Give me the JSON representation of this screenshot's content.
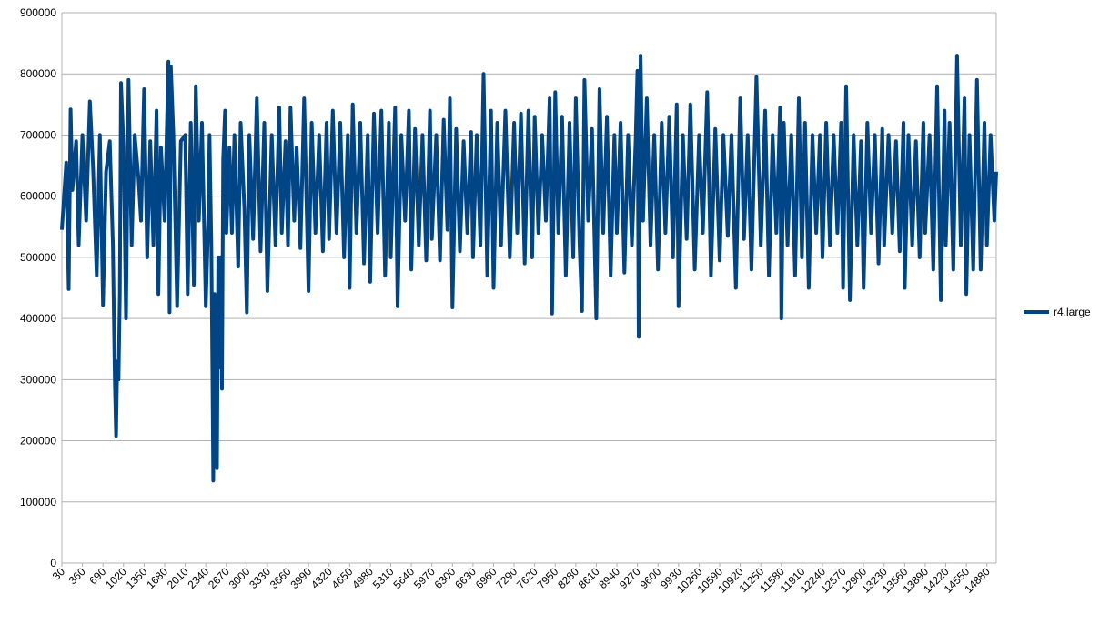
{
  "chart_data": {
    "type": "line",
    "title": "",
    "xlabel": "",
    "ylabel": "",
    "ylim": [
      0,
      900000
    ],
    "y_ticks": [
      0,
      100000,
      200000,
      300000,
      400000,
      500000,
      600000,
      700000,
      800000,
      900000
    ],
    "x_tick_labels": [
      "30",
      "360",
      "690",
      "1020",
      "1350",
      "1680",
      "2010",
      "2340",
      "2670",
      "3000",
      "3330",
      "3660",
      "3990",
      "4320",
      "4650",
      "4980",
      "5310",
      "5640",
      "5970",
      "6300",
      "6630",
      "6960",
      "7290",
      "7620",
      "7950",
      "8280",
      "8610",
      "8940",
      "9270",
      "9600",
      "9930",
      "10260",
      "10590",
      "10920",
      "11250",
      "11580",
      "11910",
      "12240",
      "12570",
      "12900",
      "13230",
      "13560",
      "13890",
      "14220",
      "14550",
      "14880"
    ],
    "xlim": [
      30,
      15030
    ],
    "grid": "horizontal",
    "legend_position": "right",
    "series": [
      {
        "name": "r4.large",
        "color": "#004586",
        "points": [
          [
            30,
            545000
          ],
          [
            100,
            655000
          ],
          [
            140,
            448000
          ],
          [
            170,
            742000
          ],
          [
            200,
            610000
          ],
          [
            260,
            690000
          ],
          [
            300,
            520000
          ],
          [
            360,
            700000
          ],
          [
            420,
            560000
          ],
          [
            480,
            755000
          ],
          [
            530,
            650000
          ],
          [
            590,
            470000
          ],
          [
            640,
            700000
          ],
          [
            690,
            422000
          ],
          [
            740,
            640000
          ],
          [
            800,
            690000
          ],
          [
            850,
            520000
          ],
          [
            880,
            300000
          ],
          [
            900,
            208000
          ],
          [
            920,
            330000
          ],
          [
            940,
            300000
          ],
          [
            960,
            440000
          ],
          [
            980,
            785000
          ],
          [
            1020,
            680000
          ],
          [
            1060,
            400000
          ],
          [
            1100,
            790000
          ],
          [
            1150,
            520000
          ],
          [
            1200,
            700000
          ],
          [
            1260,
            630000
          ],
          [
            1300,
            560000
          ],
          [
            1350,
            775000
          ],
          [
            1400,
            500000
          ],
          [
            1450,
            690000
          ],
          [
            1500,
            520000
          ],
          [
            1550,
            740000
          ],
          [
            1580,
            440000
          ],
          [
            1620,
            680000
          ],
          [
            1680,
            560000
          ],
          [
            1740,
            820000
          ],
          [
            1760,
            410000
          ],
          [
            1780,
            812000
          ],
          [
            1820,
            700000
          ],
          [
            1880,
            420000
          ],
          [
            1940,
            690000
          ],
          [
            2010,
            700000
          ],
          [
            2050,
            440000
          ],
          [
            2100,
            720000
          ],
          [
            2150,
            455000
          ],
          [
            2180,
            780000
          ],
          [
            2230,
            560000
          ],
          [
            2280,
            720000
          ],
          [
            2340,
            420000
          ],
          [
            2380,
            560000
          ],
          [
            2400,
            700000
          ],
          [
            2430,
            520000
          ],
          [
            2450,
            270000
          ],
          [
            2460,
            135000
          ],
          [
            2480,
            440000
          ],
          [
            2490,
            160000
          ],
          [
            2510,
            325000
          ],
          [
            2520,
            155000
          ],
          [
            2540,
            500000
          ],
          [
            2560,
            320000
          ],
          [
            2580,
            500000
          ],
          [
            2600,
            285000
          ],
          [
            2620,
            660000
          ],
          [
            2650,
            740000
          ],
          [
            2670,
            540000
          ],
          [
            2720,
            680000
          ],
          [
            2760,
            540000
          ],
          [
            2800,
            700000
          ],
          [
            2860,
            485000
          ],
          [
            2900,
            720000
          ],
          [
            2960,
            580000
          ],
          [
            3000,
            410000
          ],
          [
            3040,
            700000
          ],
          [
            3100,
            530000
          ],
          [
            3160,
            760000
          ],
          [
            3220,
            510000
          ],
          [
            3280,
            720000
          ],
          [
            3330,
            445000
          ],
          [
            3400,
            700000
          ],
          [
            3460,
            520000
          ],
          [
            3520,
            745000
          ],
          [
            3560,
            540000
          ],
          [
            3620,
            690000
          ],
          [
            3660,
            520000
          ],
          [
            3700,
            745000
          ],
          [
            3760,
            560000
          ],
          [
            3800,
            680000
          ],
          [
            3860,
            515000
          ],
          [
            3920,
            760000
          ],
          [
            3990,
            445000
          ],
          [
            4040,
            720000
          ],
          [
            4100,
            540000
          ],
          [
            4160,
            700000
          ],
          [
            4220,
            510000
          ],
          [
            4280,
            720000
          ],
          [
            4320,
            530000
          ],
          [
            4380,
            740000
          ],
          [
            4440,
            540000
          ],
          [
            4500,
            720000
          ],
          [
            4560,
            500000
          ],
          [
            4620,
            700000
          ],
          [
            4650,
            450000
          ],
          [
            4700,
            750000
          ],
          [
            4760,
            540000
          ],
          [
            4820,
            720000
          ],
          [
            4880,
            490000
          ],
          [
            4940,
            700000
          ],
          [
            4980,
            460000
          ],
          [
            5040,
            735000
          ],
          [
            5100,
            540000
          ],
          [
            5160,
            740000
          ],
          [
            5220,
            470000
          ],
          [
            5280,
            720000
          ],
          [
            5310,
            500000
          ],
          [
            5380,
            745000
          ],
          [
            5420,
            420000
          ],
          [
            5480,
            700000
          ],
          [
            5540,
            560000
          ],
          [
            5600,
            740000
          ],
          [
            5640,
            480000
          ],
          [
            5700,
            710000
          ],
          [
            5760,
            520000
          ],
          [
            5820,
            700000
          ],
          [
            5880,
            495000
          ],
          [
            5940,
            740000
          ],
          [
            5970,
            530000
          ],
          [
            6040,
            700000
          ],
          [
            6100,
            495000
          ],
          [
            6160,
            725000
          ],
          [
            6220,
            545000
          ],
          [
            6260,
            760000
          ],
          [
            6300,
            418000
          ],
          [
            6360,
            710000
          ],
          [
            6420,
            510000
          ],
          [
            6480,
            690000
          ],
          [
            6540,
            540000
          ],
          [
            6600,
            705000
          ],
          [
            6630,
            500000
          ],
          [
            6690,
            700000
          ],
          [
            6750,
            520000
          ],
          [
            6800,
            800000
          ],
          [
            6860,
            470000
          ],
          [
            6920,
            740000
          ],
          [
            6960,
            450000
          ],
          [
            7020,
            720000
          ],
          [
            7080,
            520000
          ],
          [
            7150,
            740000
          ],
          [
            7220,
            500000
          ],
          [
            7290,
            720000
          ],
          [
            7340,
            540000
          ],
          [
            7400,
            735000
          ],
          [
            7460,
            490000
          ],
          [
            7520,
            740000
          ],
          [
            7580,
            500000
          ],
          [
            7620,
            730000
          ],
          [
            7680,
            540000
          ],
          [
            7740,
            700000
          ],
          [
            7800,
            560000
          ],
          [
            7860,
            760000
          ],
          [
            7900,
            408000
          ],
          [
            7950,
            770000
          ],
          [
            8000,
            540000
          ],
          [
            8060,
            730000
          ],
          [
            8120,
            470000
          ],
          [
            8180,
            720000
          ],
          [
            8240,
            500000
          ],
          [
            8280,
            760000
          ],
          [
            8340,
            520000
          ],
          [
            8380,
            412000
          ],
          [
            8420,
            790000
          ],
          [
            8480,
            560000
          ],
          [
            8540,
            710000
          ],
          [
            8610,
            400000
          ],
          [
            8660,
            775000
          ],
          [
            8720,
            540000
          ],
          [
            8780,
            730000
          ],
          [
            8840,
            470000
          ],
          [
            8900,
            700000
          ],
          [
            8940,
            540000
          ],
          [
            9000,
            720000
          ],
          [
            9060,
            475000
          ],
          [
            9120,
            700000
          ],
          [
            9180,
            520000
          ],
          [
            9240,
            690000
          ],
          [
            9270,
            805000
          ],
          [
            9290,
            370000
          ],
          [
            9320,
            830000
          ],
          [
            9360,
            560000
          ],
          [
            9420,
            760000
          ],
          [
            9480,
            520000
          ],
          [
            9540,
            700000
          ],
          [
            9600,
            480000
          ],
          [
            9660,
            720000
          ],
          [
            9720,
            540000
          ],
          [
            9780,
            730000
          ],
          [
            9840,
            500000
          ],
          [
            9900,
            750000
          ],
          [
            9930,
            420000
          ],
          [
            10000,
            700000
          ],
          [
            10060,
            530000
          ],
          [
            10120,
            750000
          ],
          [
            10190,
            480000
          ],
          [
            10260,
            700000
          ],
          [
            10320,
            540000
          ],
          [
            10390,
            770000
          ],
          [
            10450,
            470000
          ],
          [
            10520,
            710000
          ],
          [
            10590,
            495000
          ],
          [
            10650,
            700000
          ],
          [
            10720,
            535000
          ],
          [
            10780,
            700000
          ],
          [
            10850,
            450000
          ],
          [
            10920,
            760000
          ],
          [
            10980,
            530000
          ],
          [
            11040,
            700000
          ],
          [
            11100,
            480000
          ],
          [
            11180,
            795000
          ],
          [
            11250,
            520000
          ],
          [
            11320,
            740000
          ],
          [
            11380,
            470000
          ],
          [
            11440,
            700000
          ],
          [
            11500,
            540000
          ],
          [
            11560,
            745000
          ],
          [
            11580,
            400000
          ],
          [
            11620,
            720000
          ],
          [
            11680,
            520000
          ],
          [
            11740,
            700000
          ],
          [
            11800,
            470000
          ],
          [
            11860,
            760000
          ],
          [
            11910,
            500000
          ],
          [
            11960,
            720000
          ],
          [
            12020,
            450000
          ],
          [
            12080,
            700000
          ],
          [
            12140,
            540000
          ],
          [
            12200,
            700000
          ],
          [
            12240,
            500000
          ],
          [
            12300,
            720000
          ],
          [
            12360,
            520000
          ],
          [
            12420,
            700000
          ],
          [
            12480,
            540000
          ],
          [
            12540,
            720000
          ],
          [
            12570,
            450000
          ],
          [
            12620,
            780000
          ],
          [
            12680,
            430000
          ],
          [
            12740,
            700000
          ],
          [
            12800,
            520000
          ],
          [
            12860,
            690000
          ],
          [
            12900,
            450000
          ],
          [
            12960,
            720000
          ],
          [
            13020,
            540000
          ],
          [
            13080,
            700000
          ],
          [
            13140,
            490000
          ],
          [
            13200,
            710000
          ],
          [
            13230,
            520000
          ],
          [
            13300,
            700000
          ],
          [
            13360,
            540000
          ],
          [
            13420,
            690000
          ],
          [
            13480,
            510000
          ],
          [
            13540,
            720000
          ],
          [
            13560,
            450000
          ],
          [
            13620,
            700000
          ],
          [
            13680,
            520000
          ],
          [
            13740,
            690000
          ],
          [
            13800,
            500000
          ],
          [
            13860,
            720000
          ],
          [
            13890,
            540000
          ],
          [
            13960,
            700000
          ],
          [
            14020,
            480000
          ],
          [
            14080,
            780000
          ],
          [
            14140,
            430000
          ],
          [
            14200,
            740000
          ],
          [
            14220,
            520000
          ],
          [
            14280,
            720000
          ],
          [
            14340,
            480000
          ],
          [
            14400,
            830000
          ],
          [
            14460,
            520000
          ],
          [
            14520,
            760000
          ],
          [
            14550,
            440000
          ],
          [
            14600,
            700000
          ],
          [
            14660,
            480000
          ],
          [
            14720,
            790000
          ],
          [
            14780,
            480000
          ],
          [
            14840,
            720000
          ],
          [
            14880,
            520000
          ],
          [
            14940,
            700000
          ],
          [
            15000,
            560000
          ],
          [
            15030,
            640000
          ]
        ]
      }
    ]
  }
}
